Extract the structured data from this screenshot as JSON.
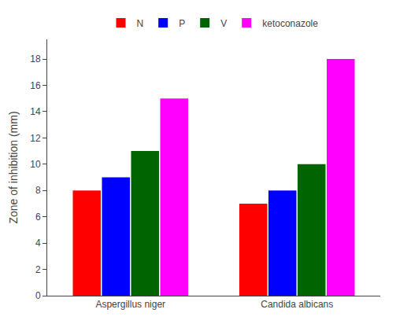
{
  "chart_data": {
    "type": "bar",
    "categories": [
      "Aspergillus niger",
      "Candida albicans"
    ],
    "series": [
      {
        "name": "N",
        "color": "#ff0000",
        "values": [
          8,
          7
        ]
      },
      {
        "name": "P",
        "color": "#0000ff",
        "values": [
          9,
          8
        ]
      },
      {
        "name": "V",
        "color": "#006400",
        "values": [
          11,
          10
        ]
      },
      {
        "name": "ketoconazole",
        "color": "#ff00ff",
        "values": [
          15,
          18
        ]
      }
    ],
    "y_label": "Zone of inhibition (mm)",
    "ylim": [
      0,
      19.5
    ],
    "yticks": [
      0,
      2,
      4,
      6,
      8,
      10,
      12,
      14,
      16,
      18
    ],
    "grid": false,
    "legend": "top"
  }
}
